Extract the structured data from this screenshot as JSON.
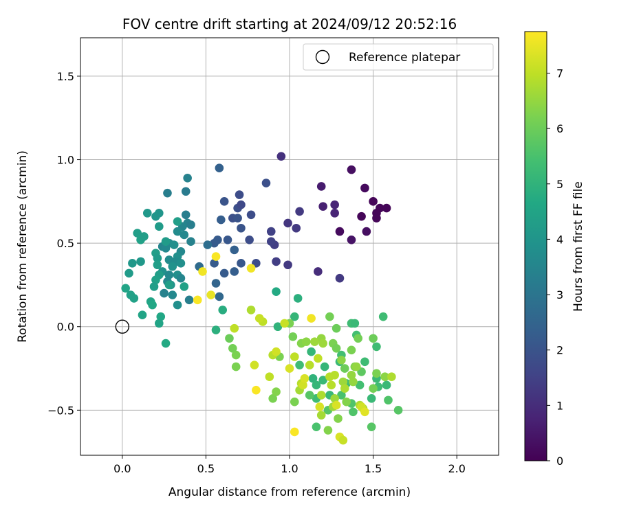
{
  "chart_data": {
    "type": "scatter",
    "title": "FOV centre drift starting at 2024/09/12 20:52:16",
    "xlabel": "Angular distance from reference (arcmin)",
    "ylabel": "Rotation from reference (arcmin)",
    "xlim": [
      -0.25,
      2.25
    ],
    "ylim": [
      -0.77,
      1.73
    ],
    "xticks": [
      0.0,
      0.5,
      1.0,
      1.5,
      2.0
    ],
    "xtick_labels": [
      "0.0",
      "0.5",
      "1.0",
      "1.5",
      "2.0"
    ],
    "yticks": [
      -0.5,
      0.0,
      0.5,
      1.0,
      1.5
    ],
    "ytick_labels": [
      "−0.5",
      "0.0",
      "0.5",
      "1.0",
      "1.5"
    ],
    "grid": true,
    "legend": {
      "placement": "upper right",
      "label": "Reference platepar",
      "marker": "open-circle"
    },
    "reference_point": {
      "x": 0.0,
      "y": 0.0
    },
    "colorbar": {
      "label": "Hours from first FF file",
      "colormap": "viridis",
      "range": [
        0,
        7.75
      ],
      "ticks": [
        0,
        1,
        2,
        3,
        4,
        5,
        6,
        7
      ],
      "tick_labels": [
        "0",
        "1",
        "2",
        "3",
        "4",
        "5",
        "6",
        "7"
      ]
    },
    "points": [
      {
        "x": 1.37,
        "y": 0.94,
        "t": 0.3
      },
      {
        "x": 1.45,
        "y": 0.83,
        "t": 0.2
      },
      {
        "x": 1.5,
        "y": 0.75,
        "t": 0.1
      },
      {
        "x": 1.54,
        "y": 0.71,
        "t": 0.1
      },
      {
        "x": 1.58,
        "y": 0.71,
        "t": 0.1
      },
      {
        "x": 1.52,
        "y": 0.68,
        "t": 0.1
      },
      {
        "x": 1.52,
        "y": 0.65,
        "t": 0.1
      },
      {
        "x": 1.43,
        "y": 0.66,
        "t": 0.1
      },
      {
        "x": 1.3,
        "y": 0.57,
        "t": 0.2
      },
      {
        "x": 1.46,
        "y": 0.57,
        "t": 0.3
      },
      {
        "x": 1.37,
        "y": 0.52,
        "t": 0.4
      },
      {
        "x": 1.19,
        "y": 0.84,
        "t": 0.6
      },
      {
        "x": 1.2,
        "y": 0.72,
        "t": 0.7
      },
      {
        "x": 1.27,
        "y": 0.73,
        "t": 0.8
      },
      {
        "x": 1.27,
        "y": 0.68,
        "t": 0.8
      },
      {
        "x": 0.95,
        "y": 1.02,
        "t": 1.1
      },
      {
        "x": 1.06,
        "y": 0.69,
        "t": 1.3
      },
      {
        "x": 0.99,
        "y": 0.62,
        "t": 1.2
      },
      {
        "x": 1.04,
        "y": 0.59,
        "t": 1.3
      },
      {
        "x": 1.17,
        "y": 0.33,
        "t": 1.0
      },
      {
        "x": 1.3,
        "y": 0.29,
        "t": 1.3
      },
      {
        "x": 0.86,
        "y": 0.86,
        "t": 1.9
      },
      {
        "x": 0.89,
        "y": 0.57,
        "t": 1.5
      },
      {
        "x": 0.91,
        "y": 0.49,
        "t": 1.4
      },
      {
        "x": 0.92,
        "y": 0.39,
        "t": 1.4
      },
      {
        "x": 0.99,
        "y": 0.37,
        "t": 1.3
      },
      {
        "x": 0.89,
        "y": 0.51,
        "t": 1.5
      },
      {
        "x": 0.58,
        "y": 0.95,
        "t": 2.4
      },
      {
        "x": 0.61,
        "y": 0.75,
        "t": 2.0
      },
      {
        "x": 0.7,
        "y": 0.79,
        "t": 1.8
      },
      {
        "x": 0.69,
        "y": 0.71,
        "t": 1.9
      },
      {
        "x": 0.71,
        "y": 0.73,
        "t": 1.7
      },
      {
        "x": 0.66,
        "y": 0.65,
        "t": 1.9
      },
      {
        "x": 0.69,
        "y": 0.65,
        "t": 2.0
      },
      {
        "x": 0.77,
        "y": 0.67,
        "t": 1.8
      },
      {
        "x": 0.59,
        "y": 0.64,
        "t": 2.3
      },
      {
        "x": 0.71,
        "y": 0.59,
        "t": 2.0
      },
      {
        "x": 0.63,
        "y": 0.52,
        "t": 2.1
      },
      {
        "x": 0.57,
        "y": 0.52,
        "t": 2.2
      },
      {
        "x": 0.76,
        "y": 0.52,
        "t": 1.8
      },
      {
        "x": 0.55,
        "y": 0.5,
        "t": 2.2
      },
      {
        "x": 0.67,
        "y": 0.46,
        "t": 2.4
      },
      {
        "x": 0.55,
        "y": 0.38,
        "t": 2.2
      },
      {
        "x": 0.71,
        "y": 0.38,
        "t": 2.1
      },
      {
        "x": 0.8,
        "y": 0.38,
        "t": 1.8
      },
      {
        "x": 0.61,
        "y": 0.32,
        "t": 2.2
      },
      {
        "x": 0.67,
        "y": 0.33,
        "t": 2.3
      },
      {
        "x": 0.56,
        "y": 0.26,
        "t": 2.5
      },
      {
        "x": 0.58,
        "y": 0.18,
        "t": 2.6
      },
      {
        "x": 0.46,
        "y": 0.36,
        "t": 2.7
      },
      {
        "x": 0.51,
        "y": 0.49,
        "t": 2.8
      },
      {
        "x": 0.39,
        "y": 0.89,
        "t": 3.4
      },
      {
        "x": 0.27,
        "y": 0.8,
        "t": 3.3
      },
      {
        "x": 0.38,
        "y": 0.81,
        "t": 3.2
      },
      {
        "x": 0.38,
        "y": 0.67,
        "t": 3.3
      },
      {
        "x": 0.39,
        "y": 0.62,
        "t": 3.4
      },
      {
        "x": 0.41,
        "y": 0.61,
        "t": 3.3
      },
      {
        "x": 0.36,
        "y": 0.6,
        "t": 3.5
      },
      {
        "x": 0.33,
        "y": 0.57,
        "t": 3.7
      },
      {
        "x": 0.37,
        "y": 0.55,
        "t": 3.6
      },
      {
        "x": 0.41,
        "y": 0.51,
        "t": 3.4
      },
      {
        "x": 0.28,
        "y": 0.5,
        "t": 3.7
      },
      {
        "x": 0.31,
        "y": 0.49,
        "t": 3.8
      },
      {
        "x": 0.24,
        "y": 0.48,
        "t": 3.5
      },
      {
        "x": 0.26,
        "y": 0.47,
        "t": 3.6
      },
      {
        "x": 0.35,
        "y": 0.45,
        "t": 3.6
      },
      {
        "x": 0.33,
        "y": 0.42,
        "t": 3.8
      },
      {
        "x": 0.28,
        "y": 0.4,
        "t": 3.7
      },
      {
        "x": 0.32,
        "y": 0.39,
        "t": 3.7
      },
      {
        "x": 0.35,
        "y": 0.38,
        "t": 3.8
      },
      {
        "x": 0.3,
        "y": 0.36,
        "t": 3.9
      },
      {
        "x": 0.24,
        "y": 0.33,
        "t": 3.9
      },
      {
        "x": 0.28,
        "y": 0.31,
        "t": 3.6
      },
      {
        "x": 0.33,
        "y": 0.31,
        "t": 3.8
      },
      {
        "x": 0.35,
        "y": 0.29,
        "t": 3.5
      },
      {
        "x": 0.27,
        "y": 0.27,
        "t": 3.6
      },
      {
        "x": 0.29,
        "y": 0.25,
        "t": 3.9
      },
      {
        "x": 0.25,
        "y": 0.2,
        "t": 3.4
      },
      {
        "x": 0.3,
        "y": 0.19,
        "t": 3.6
      },
      {
        "x": 0.4,
        "y": 0.16,
        "t": 3.3
      },
      {
        "x": 0.33,
        "y": 0.13,
        "t": 3.8
      },
      {
        "x": 0.22,
        "y": 0.68,
        "t": 4.0
      },
      {
        "x": 0.15,
        "y": 0.68,
        "t": 4.1
      },
      {
        "x": 0.2,
        "y": 0.66,
        "t": 4.0
      },
      {
        "x": 0.33,
        "y": 0.63,
        "t": 4.3
      },
      {
        "x": 0.22,
        "y": 0.6,
        "t": 4.2
      },
      {
        "x": 0.09,
        "y": 0.56,
        "t": 4.3
      },
      {
        "x": 0.11,
        "y": 0.52,
        "t": 4.4
      },
      {
        "x": 0.13,
        "y": 0.54,
        "t": 4.3
      },
      {
        "x": 0.26,
        "y": 0.51,
        "t": 4.2
      },
      {
        "x": 0.2,
        "y": 0.44,
        "t": 4.3
      },
      {
        "x": 0.21,
        "y": 0.41,
        "t": 4.2
      },
      {
        "x": 0.06,
        "y": 0.38,
        "t": 4.1
      },
      {
        "x": 0.11,
        "y": 0.39,
        "t": 4.1
      },
      {
        "x": 0.21,
        "y": 0.37,
        "t": 4.3
      },
      {
        "x": 0.04,
        "y": 0.32,
        "t": 4.2
      },
      {
        "x": 0.22,
        "y": 0.31,
        "t": 4.3
      },
      {
        "x": 0.2,
        "y": 0.28,
        "t": 4.4
      },
      {
        "x": 0.28,
        "y": 0.25,
        "t": 4.3
      },
      {
        "x": 0.37,
        "y": 0.24,
        "t": 4.4
      },
      {
        "x": 0.19,
        "y": 0.24,
        "t": 4.3
      },
      {
        "x": 0.02,
        "y": 0.23,
        "t": 4.5
      },
      {
        "x": 0.05,
        "y": 0.19,
        "t": 4.4
      },
      {
        "x": 0.07,
        "y": 0.17,
        "t": 4.4
      },
      {
        "x": 0.17,
        "y": 0.15,
        "t": 4.5
      },
      {
        "x": 0.18,
        "y": 0.13,
        "t": 4.6
      },
      {
        "x": 0.12,
        "y": 0.07,
        "t": 4.5
      },
      {
        "x": 0.23,
        "y": 0.06,
        "t": 4.6
      },
      {
        "x": 0.22,
        "y": 0.02,
        "t": 4.5
      },
      {
        "x": 0.26,
        "y": -0.1,
        "t": 4.7
      },
      {
        "x": 0.92,
        "y": 0.21,
        "t": 4.7
      },
      {
        "x": 1.05,
        "y": 0.17,
        "t": 4.9
      },
      {
        "x": 0.6,
        "y": 0.1,
        "t": 4.8
      },
      {
        "x": 0.56,
        "y": -0.02,
        "t": 4.9
      },
      {
        "x": 1.03,
        "y": 0.06,
        "t": 5.1
      },
      {
        "x": 0.93,
        "y": 0.0,
        "t": 5.0
      },
      {
        "x": 1.37,
        "y": 0.02,
        "t": 5.3
      },
      {
        "x": 1.39,
        "y": 0.02,
        "t": 5.2
      },
      {
        "x": 1.56,
        "y": 0.06,
        "t": 5.3
      },
      {
        "x": 1.4,
        "y": -0.05,
        "t": 5.4
      },
      {
        "x": 1.52,
        "y": -0.12,
        "t": 5.3
      },
      {
        "x": 1.13,
        "y": -0.15,
        "t": 5.1
      },
      {
        "x": 1.31,
        "y": -0.17,
        "t": 5.4
      },
      {
        "x": 1.06,
        "y": -0.23,
        "t": 5.3
      },
      {
        "x": 1.21,
        "y": -0.24,
        "t": 5.1
      },
      {
        "x": 1.3,
        "y": -0.21,
        "t": 5.2
      },
      {
        "x": 1.45,
        "y": -0.21,
        "t": 5.3
      },
      {
        "x": 1.14,
        "y": -0.31,
        "t": 5.0
      },
      {
        "x": 1.2,
        "y": -0.32,
        "t": 5.2
      },
      {
        "x": 1.16,
        "y": -0.35,
        "t": 5.1
      },
      {
        "x": 1.34,
        "y": -0.34,
        "t": 5.3
      },
      {
        "x": 1.42,
        "y": -0.35,
        "t": 5.4
      },
      {
        "x": 1.24,
        "y": -0.41,
        "t": 5.2
      },
      {
        "x": 1.31,
        "y": -0.41,
        "t": 5.5
      },
      {
        "x": 1.49,
        "y": -0.43,
        "t": 5.2
      },
      {
        "x": 1.16,
        "y": -0.43,
        "t": 5.3
      },
      {
        "x": 1.53,
        "y": -0.36,
        "t": 5.3
      },
      {
        "x": 1.52,
        "y": -0.31,
        "t": 5.2
      },
      {
        "x": 1.58,
        "y": -0.35,
        "t": 5.2
      },
      {
        "x": 1.59,
        "y": -0.44,
        "t": 5.6
      },
      {
        "x": 1.65,
        "y": -0.5,
        "t": 5.7
      },
      {
        "x": 1.37,
        "y": -0.46,
        "t": 5.6
      },
      {
        "x": 1.38,
        "y": -0.51,
        "t": 5.6
      },
      {
        "x": 1.49,
        "y": -0.6,
        "t": 5.7
      },
      {
        "x": 1.16,
        "y": -0.6,
        "t": 5.5
      },
      {
        "x": 1.23,
        "y": -0.5,
        "t": 5.7
      },
      {
        "x": 1.12,
        "y": -0.41,
        "t": 5.7
      },
      {
        "x": 1.43,
        "y": -0.27,
        "t": 5.8
      },
      {
        "x": 1.5,
        "y": -0.07,
        "t": 6.0
      },
      {
        "x": 1.41,
        "y": -0.07,
        "t": 6.1
      },
      {
        "x": 1.28,
        "y": -0.01,
        "t": 6.0
      },
      {
        "x": 1.24,
        "y": 0.06,
        "t": 6.1
      },
      {
        "x": 1.0,
        "y": 0.02,
        "t": 6.2
      },
      {
        "x": 1.02,
        "y": -0.06,
        "t": 6.1
      },
      {
        "x": 0.64,
        "y": -0.07,
        "t": 6.0
      },
      {
        "x": 0.66,
        "y": -0.13,
        "t": 6.1
      },
      {
        "x": 0.68,
        "y": -0.17,
        "t": 6.2
      },
      {
        "x": 0.68,
        "y": -0.24,
        "t": 6.2
      },
      {
        "x": 1.07,
        "y": -0.1,
        "t": 6.3
      },
      {
        "x": 1.26,
        "y": -0.1,
        "t": 6.2
      },
      {
        "x": 1.28,
        "y": -0.13,
        "t": 6.1
      },
      {
        "x": 1.37,
        "y": -0.14,
        "t": 6.2
      },
      {
        "x": 1.33,
        "y": -0.25,
        "t": 6.0
      },
      {
        "x": 1.39,
        "y": -0.24,
        "t": 6.3
      },
      {
        "x": 1.52,
        "y": -0.28,
        "t": 6.2
      },
      {
        "x": 1.57,
        "y": -0.3,
        "t": 6.4
      },
      {
        "x": 1.5,
        "y": -0.37,
        "t": 6.1
      },
      {
        "x": 1.34,
        "y": -0.45,
        "t": 6.3
      },
      {
        "x": 1.29,
        "y": -0.55,
        "t": 6.3
      },
      {
        "x": 1.23,
        "y": -0.62,
        "t": 6.3
      },
      {
        "x": 1.03,
        "y": -0.45,
        "t": 6.2
      },
      {
        "x": 0.9,
        "y": -0.43,
        "t": 6.2
      },
      {
        "x": 0.92,
        "y": -0.39,
        "t": 6.3
      },
      {
        "x": 0.94,
        "y": -0.18,
        "t": 6.2
      },
      {
        "x": 1.1,
        "y": -0.09,
        "t": 6.4
      },
      {
        "x": 1.19,
        "y": -0.07,
        "t": 6.5
      },
      {
        "x": 1.2,
        "y": -0.1,
        "t": 6.6
      },
      {
        "x": 1.15,
        "y": -0.09,
        "t": 6.6
      },
      {
        "x": 1.31,
        "y": -0.2,
        "t": 6.4
      },
      {
        "x": 1.4,
        "y": -0.24,
        "t": 6.5
      },
      {
        "x": 1.37,
        "y": -0.29,
        "t": 6.5
      },
      {
        "x": 1.32,
        "y": -0.33,
        "t": 6.6
      },
      {
        "x": 1.38,
        "y": -0.33,
        "t": 6.5
      },
      {
        "x": 1.27,
        "y": -0.43,
        "t": 6.6
      },
      {
        "x": 1.26,
        "y": -0.48,
        "t": 6.6
      },
      {
        "x": 1.19,
        "y": -0.53,
        "t": 6.7
      },
      {
        "x": 1.42,
        "y": -0.47,
        "t": 6.8
      },
      {
        "x": 1.44,
        "y": -0.49,
        "t": 6.8
      },
      {
        "x": 1.61,
        "y": -0.3,
        "t": 6.8
      },
      {
        "x": 1.06,
        "y": -0.38,
        "t": 6.7
      },
      {
        "x": 1.07,
        "y": -0.34,
        "t": 6.9
      },
      {
        "x": 1.19,
        "y": -0.41,
        "t": 6.8
      },
      {
        "x": 1.25,
        "y": -0.35,
        "t": 6.9
      },
      {
        "x": 1.33,
        "y": -0.37,
        "t": 6.8
      },
      {
        "x": 1.12,
        "y": -0.23,
        "t": 6.9
      },
      {
        "x": 1.27,
        "y": -0.29,
        "t": 6.9
      },
      {
        "x": 1.24,
        "y": -0.3,
        "t": 6.9
      },
      {
        "x": 1.17,
        "y": -0.19,
        "t": 7.0
      },
      {
        "x": 1.03,
        "y": -0.18,
        "t": 7.0
      },
      {
        "x": 0.9,
        "y": -0.17,
        "t": 6.9
      },
      {
        "x": 0.88,
        "y": -0.3,
        "t": 7.0
      },
      {
        "x": 0.84,
        "y": 0.03,
        "t": 7.0
      },
      {
        "x": 0.77,
        "y": 0.1,
        "t": 6.8
      },
      {
        "x": 0.82,
        "y": 0.05,
        "t": 7.1
      },
      {
        "x": 0.67,
        "y": -0.01,
        "t": 7.0
      },
      {
        "x": 0.79,
        "y": -0.23,
        "t": 7.2
      },
      {
        "x": 0.92,
        "y": -0.15,
        "t": 7.2
      },
      {
        "x": 0.97,
        "y": 0.02,
        "t": 7.1
      },
      {
        "x": 1.0,
        "y": -0.25,
        "t": 7.3
      },
      {
        "x": 1.08,
        "y": -0.35,
        "t": 7.2
      },
      {
        "x": 1.09,
        "y": -0.31,
        "t": 7.3
      },
      {
        "x": 1.28,
        "y": -0.47,
        "t": 7.3
      },
      {
        "x": 1.43,
        "y": -0.48,
        "t": 7.2
      },
      {
        "x": 1.45,
        "y": -0.51,
        "t": 7.4
      },
      {
        "x": 1.3,
        "y": -0.66,
        "t": 7.3
      },
      {
        "x": 1.32,
        "y": -0.68,
        "t": 7.1
      },
      {
        "x": 1.18,
        "y": -0.48,
        "t": 7.3
      },
      {
        "x": 1.03,
        "y": -0.63,
        "t": 7.7
      },
      {
        "x": 1.13,
        "y": 0.05,
        "t": 7.6
      },
      {
        "x": 0.8,
        "y": -0.38,
        "t": 7.7
      },
      {
        "x": 0.56,
        "y": 0.42,
        "t": 7.7
      },
      {
        "x": 0.48,
        "y": 0.33,
        "t": 7.6
      },
      {
        "x": 0.53,
        "y": 0.19,
        "t": 7.5
      },
      {
        "x": 0.45,
        "y": 0.16,
        "t": 7.7
      },
      {
        "x": 0.77,
        "y": 0.35,
        "t": 7.6
      }
    ]
  }
}
